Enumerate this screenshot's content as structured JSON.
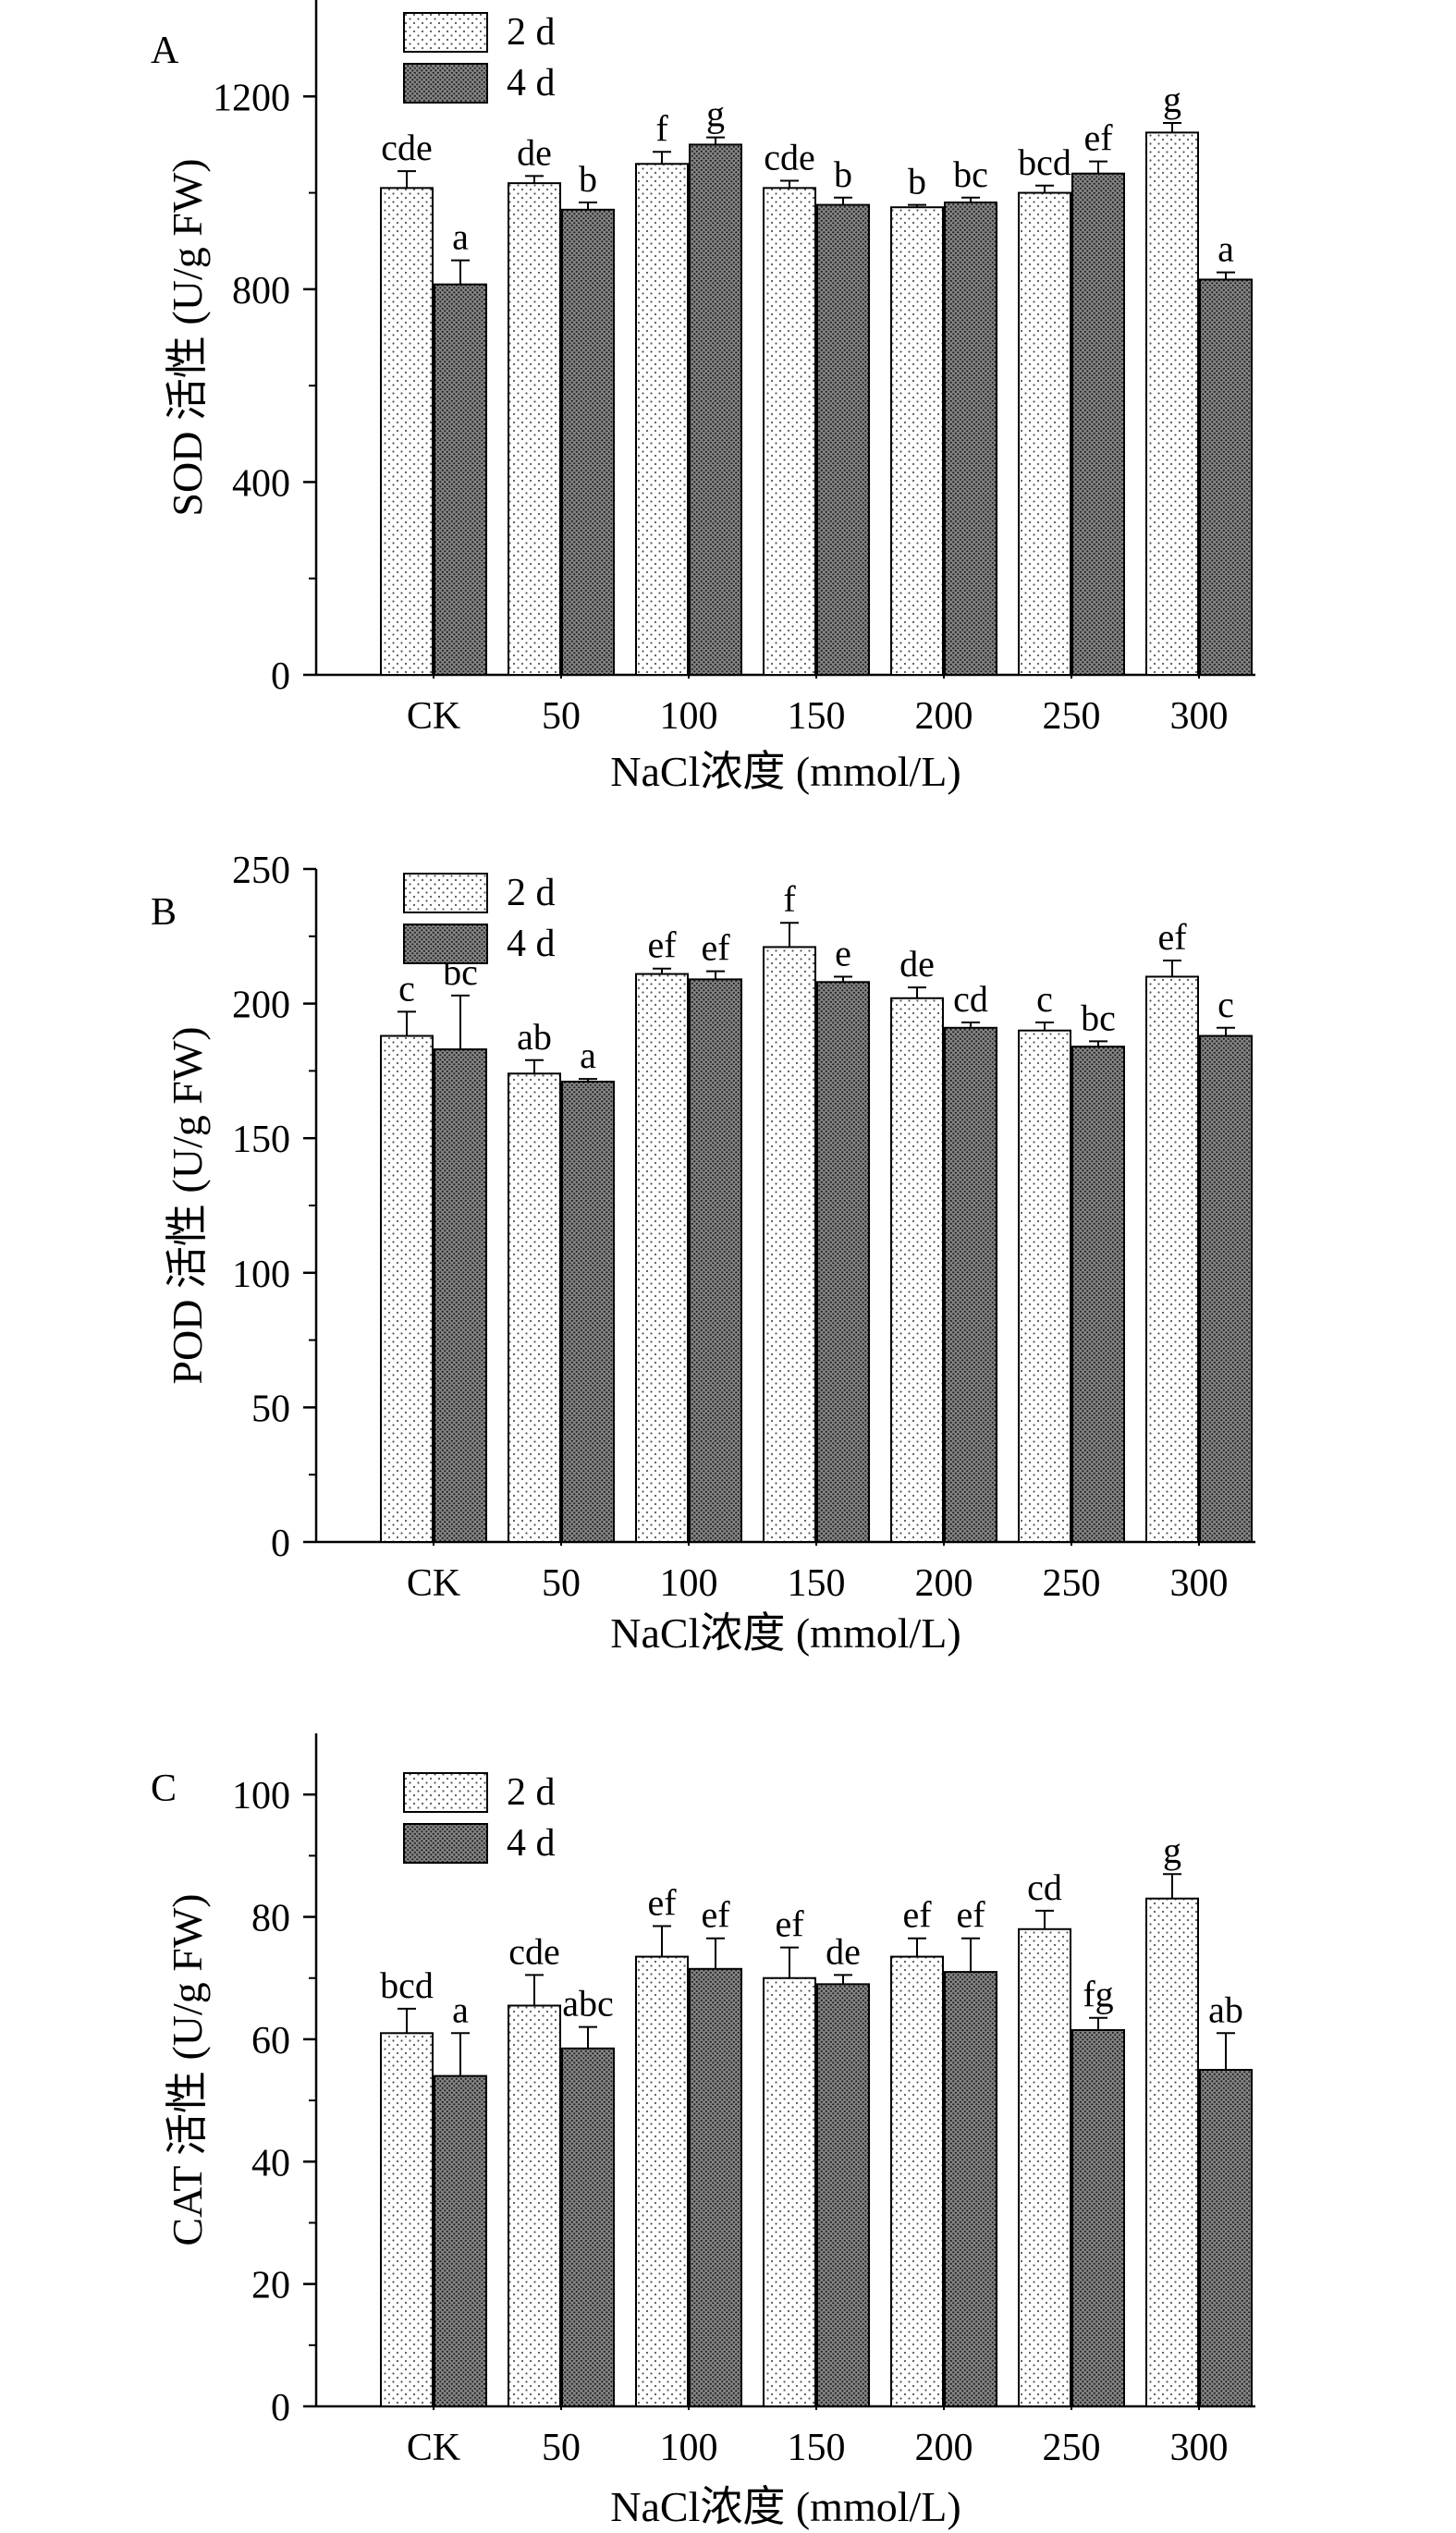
{
  "chart_data": [
    {
      "type": "bar",
      "panel": "A",
      "ylabel": "SOD 活性 (U/g FW)",
      "xlabel": "NaCl浓度 (mmol/L)",
      "categories": [
        "CK",
        "50",
        "100",
        "150",
        "200",
        "250",
        "300"
      ],
      "ylim": [
        0,
        1400
      ],
      "yticks": [
        "0",
        "400",
        "800",
        "1200"
      ],
      "series": [
        {
          "name": "2 d",
          "values": [
            1010,
            1020,
            1060,
            1010,
            970,
            1000,
            1125
          ],
          "errors": [
            35,
            15,
            25,
            15,
            5,
            15,
            20
          ],
          "letters": [
            "cde",
            "de",
            "f",
            "cde",
            "b",
            "bcd",
            "g"
          ]
        },
        {
          "name": "4 d",
          "values": [
            810,
            965,
            1100,
            975,
            980,
            1040,
            820
          ],
          "errors": [
            50,
            15,
            15,
            15,
            10,
            25,
            15
          ],
          "letters": [
            "a",
            "b",
            "g",
            "b",
            "bc",
            "ef",
            "a"
          ]
        }
      ]
    },
    {
      "type": "bar",
      "panel": "B",
      "ylabel": "POD 活性 (U/g FW)",
      "xlabel": "NaCl浓度 (mmol/L)",
      "categories": [
        "CK",
        "50",
        "100",
        "150",
        "200",
        "250",
        "300"
      ],
      "ylim": [
        0,
        250
      ],
      "yticks": [
        "0",
        "50",
        "100",
        "150",
        "200",
        "250"
      ],
      "series": [
        {
          "name": "2 d",
          "values": [
            188,
            174,
            211,
            221,
            202,
            190,
            210
          ],
          "errors": [
            9,
            5,
            2,
            9,
            4,
            3,
            6
          ],
          "letters": [
            "c",
            "ab",
            "ef",
            "f",
            "de",
            "c",
            "ef"
          ]
        },
        {
          "name": "4 d",
          "values": [
            183,
            171,
            209,
            208,
            191,
            184,
            188
          ],
          "errors": [
            20,
            1,
            3,
            2,
            2,
            2,
            3
          ],
          "letters": [
            "bc",
            "a",
            "ef",
            "e",
            "cd",
            "bc",
            "c"
          ]
        }
      ]
    },
    {
      "type": "bar",
      "panel": "C",
      "ylabel": "CAT 活性 (U/g FW)",
      "xlabel": "NaCl浓度 (mmol/L)",
      "categories": [
        "CK",
        "50",
        "100",
        "150",
        "200",
        "250",
        "300"
      ],
      "ylim": [
        0,
        110
      ],
      "yticks": [
        "0",
        "20",
        "40",
        "60",
        "80",
        "100"
      ],
      "series": [
        {
          "name": "2 d",
          "values": [
            61,
            65.5,
            73.5,
            70,
            73.5,
            78,
            83
          ],
          "errors": [
            4,
            5,
            5,
            5,
            3,
            3,
            4
          ],
          "letters": [
            "bcd",
            "cde",
            "ef",
            "ef",
            "ef",
            "cd",
            "g"
          ]
        },
        {
          "name": "4 d",
          "values": [
            54,
            58.5,
            71.5,
            69,
            71,
            61.5,
            55
          ],
          "errors": [
            7,
            3.5,
            5,
            1.5,
            5.5,
            2,
            6
          ],
          "letters": [
            "a",
            "abc",
            "ef",
            "de",
            "ef",
            "fg",
            "ab"
          ]
        }
      ]
    }
  ],
  "colors": {
    "axis": "#000000",
    "bar_2d_fill": "#ffffff",
    "bar_4d_fill": "#7a7a7a",
    "dot_2d": "#555555",
    "dot_4d": "#222222"
  }
}
